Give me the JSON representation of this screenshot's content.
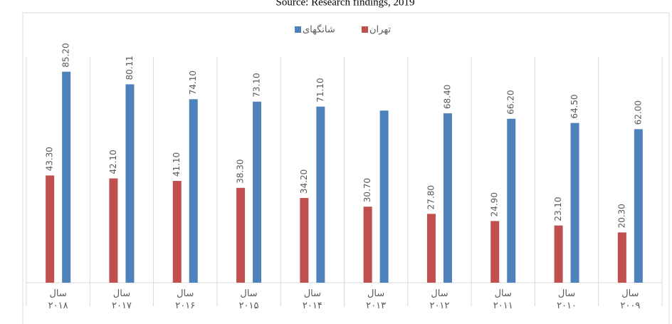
{
  "chart_data": {
    "type": "bar",
    "source": "Source: Research findings, 2019",
    "categories": [
      "سال ۲۰۱۸",
      "سال ۲۰۱۷",
      "سال ۲۰۱۶",
      "سال ۲۰۱۵",
      "سال ۲۰۱۴",
      "سال ۲۰۱۳",
      "سال ۲۰۱۲",
      "سال ۲۰۱۱",
      "سال ۲۰۱۰",
      "سال ۲۰۰۹"
    ],
    "series": [
      {
        "name": "تهران",
        "color": "#c0504d",
        "values": [
          43.3,
          42.1,
          41.1,
          38.3,
          34.2,
          30.7,
          27.8,
          24.9,
          23.1,
          20.3
        ],
        "value_labels": [
          "43.30",
          "42.10",
          "41.10",
          "38.30",
          "34.20",
          "30.70",
          "27.80",
          "24.90",
          "23.10",
          "20.30"
        ]
      },
      {
        "name": "شانگهای",
        "color": "#4f81bd",
        "values": [
          85.2,
          80.11,
          74.1,
          73.1,
          71.1,
          69.5,
          68.4,
          66.2,
          64.5,
          62.0
        ],
        "value_labels": [
          "85.20",
          "80.11",
          "74.10",
          "73.10",
          "71.10",
          null,
          "68.40",
          "66.20",
          "64.50",
          "62.00"
        ]
      }
    ],
    "ylim": [
      0,
      90
    ],
    "legend": "top"
  }
}
